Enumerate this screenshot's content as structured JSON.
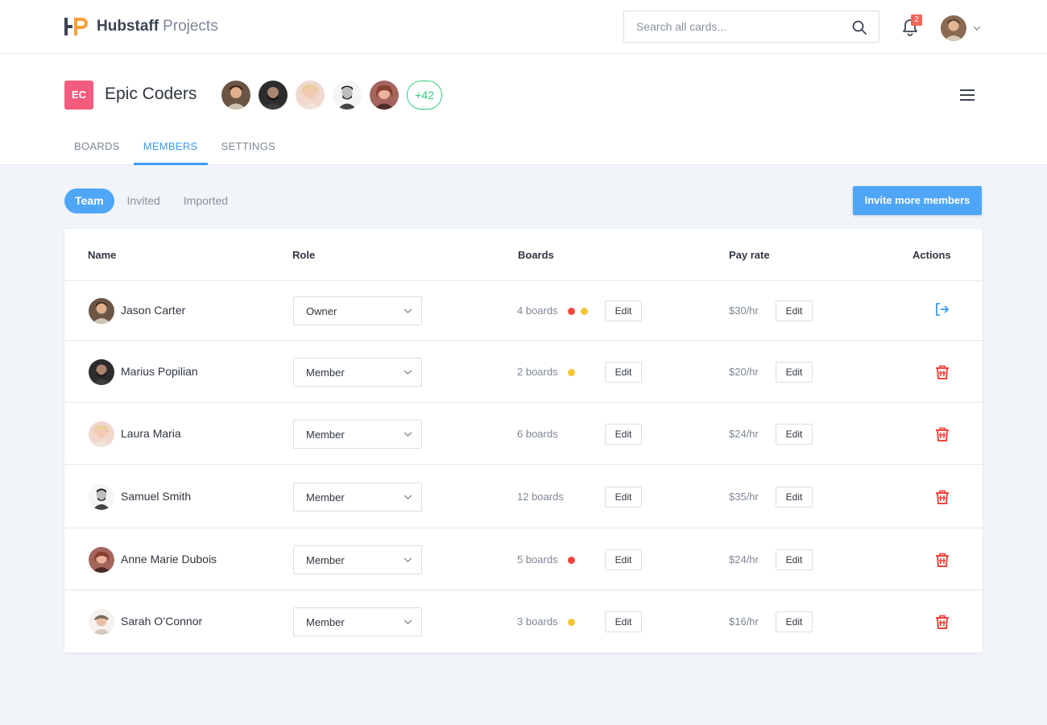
{
  "app": {
    "brand_bold": "Hubstaff",
    "brand_light": "Projects"
  },
  "search": {
    "placeholder": "Search all cards..."
  },
  "notifications": {
    "count": "2"
  },
  "team": {
    "initials": "EC",
    "name": "Epic Coders",
    "badge_color": "#f35c7d",
    "more_members": "+42"
  },
  "tabs": [
    {
      "label": "BOARDS",
      "active": false
    },
    {
      "label": "MEMBERS",
      "active": true
    },
    {
      "label": "SETTINGS",
      "active": false
    }
  ],
  "filters": [
    {
      "label": "Team",
      "active": true
    },
    {
      "label": "Invited",
      "active": false
    },
    {
      "label": "Imported",
      "active": false
    }
  ],
  "invite_button": "Invite more members",
  "table": {
    "columns": {
      "name": "Name",
      "role": "Role",
      "boards": "Boards",
      "pay_rate": "Pay rate",
      "actions": "Actions"
    },
    "edit_label": "Edit",
    "rows": [
      {
        "name": "Jason Carter",
        "role": "Owner",
        "boards": "4 boards",
        "dots": [
          "#f2453d",
          "#f7c435"
        ],
        "rate": "$30/hr",
        "action": "leave-icon"
      },
      {
        "name": "Marius Popilian",
        "role": "Member",
        "boards": "2 boards",
        "dots": [
          "#f7c435"
        ],
        "rate": "$20/hr",
        "action": "trash-icon"
      },
      {
        "name": "Laura Maria",
        "role": "Member",
        "boards": "6 boards",
        "dots": [],
        "rate": "$24/hr",
        "action": "trash-icon"
      },
      {
        "name": "Samuel Smith",
        "role": "Member",
        "boards": "12 boards",
        "dots": [],
        "rate": "$35/hr",
        "action": "trash-icon"
      },
      {
        "name": "Anne Marie Dubois",
        "role": "Member",
        "boards": "5 boards",
        "dots": [
          "#f2453d"
        ],
        "rate": "$24/hr",
        "action": "trash-icon"
      },
      {
        "name": "Sarah O’Connor",
        "role": "Member",
        "boards": "3 boards",
        "dots": [
          "#f7c435"
        ],
        "rate": "$16/hr",
        "action": "trash-icon"
      }
    ]
  },
  "colors": {
    "accent": "#4fa6f7",
    "danger": "#f2453d",
    "warning": "#f7c435",
    "success": "#31c97d"
  }
}
